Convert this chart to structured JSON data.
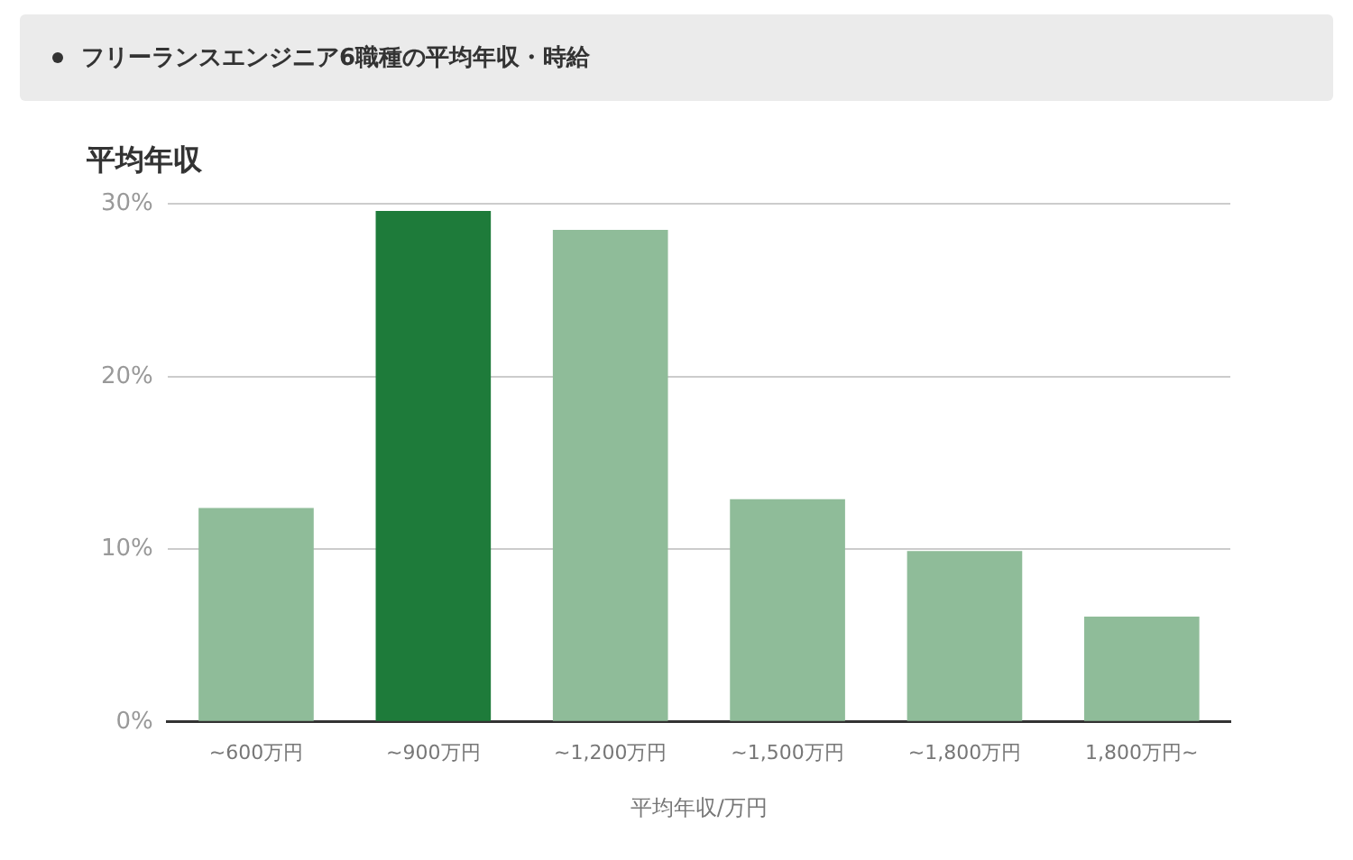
{
  "chart_data": {
    "type": "bar",
    "title": "フリーランスエンジニア6職種の平均年収・時給",
    "subtitle": "平均年収",
    "xlabel": "平均年収/万円",
    "categories": [
      "~600万円",
      "~900万円",
      "~1,200万円",
      "~1,500万円",
      "~1,800万円",
      "1,800万円~"
    ],
    "values": [
      12.4,
      29.6,
      28.5,
      12.9,
      9.9,
      6.1
    ],
    "colors": [
      "#8fbc99",
      "#1e7b3a",
      "#8fbc99",
      "#8fbc99",
      "#8fbc99",
      "#8fbc99"
    ],
    "ylim": [
      0,
      30
    ],
    "yticks": [
      {
        "value": 0,
        "label": "0%"
      },
      {
        "value": 10,
        "label": "10%"
      },
      {
        "value": 20,
        "label": "20%"
      },
      {
        "value": 30,
        "label": "30%"
      }
    ],
    "grid": "y",
    "legend": false
  }
}
